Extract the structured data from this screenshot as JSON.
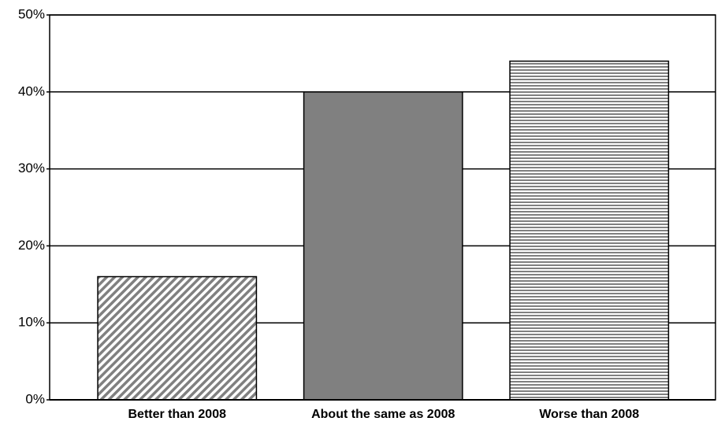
{
  "chart_data": {
    "type": "bar",
    "categories": [
      "Better than 2008",
      "About the same as 2008",
      "Worse than 2008"
    ],
    "values": [
      16,
      40,
      44
    ],
    "color": "#808080",
    "patterns": [
      "diagonal",
      "solid",
      "horizontal"
    ],
    "ylim": [
      0,
      50
    ],
    "yticks": [
      {
        "value": 0,
        "label": "0%"
      },
      {
        "value": 10,
        "label": "10%"
      },
      {
        "value": 20,
        "label": "20%"
      },
      {
        "value": 30,
        "label": "30%"
      },
      {
        "value": 40,
        "label": "40%"
      },
      {
        "value": 50,
        "label": "50%"
      }
    ],
    "grid": true
  }
}
